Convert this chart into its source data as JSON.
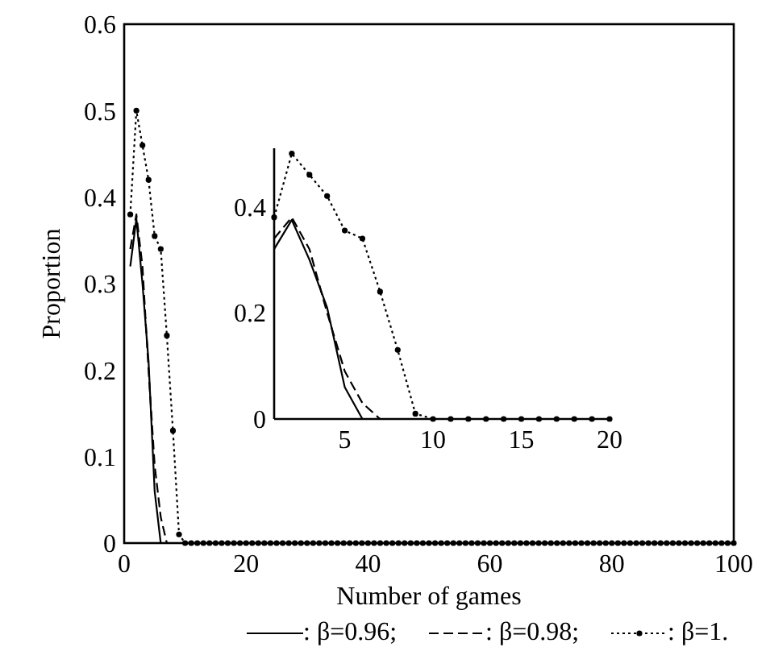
{
  "chart_data": [
    {
      "type": "line",
      "xlabel": "Number of games",
      "ylabel": "Proportion",
      "xlim": [
        0,
        100
      ],
      "xticks": [
        0,
        20,
        40,
        60,
        80,
        100
      ],
      "ylim": [
        0,
        0.6
      ],
      "yticks": [
        0,
        0.1,
        0.2,
        0.3,
        0.4,
        0.5,
        0.6
      ],
      "legend": "bottom",
      "x": [
        1,
        2,
        3,
        4,
        5,
        6,
        7,
        8,
        9,
        10,
        11,
        12,
        13,
        14,
        15,
        16,
        17,
        18,
        19,
        20,
        21,
        22,
        23,
        24,
        25,
        26,
        27,
        28,
        29,
        30,
        31,
        32,
        33,
        34,
        35,
        36,
        37,
        38,
        39,
        40,
        41,
        42,
        43,
        44,
        45,
        46,
        47,
        48,
        49,
        50,
        51,
        52,
        53,
        54,
        55,
        56,
        57,
        58,
        59,
        60,
        61,
        62,
        63,
        64,
        65,
        66,
        67,
        68,
        69,
        70,
        71,
        72,
        73,
        74,
        75,
        76,
        77,
        78,
        79,
        80,
        81,
        82,
        83,
        84,
        85,
        86,
        87,
        88,
        89,
        90,
        91,
        92,
        93,
        94,
        95,
        96,
        97,
        98,
        99,
        100
      ],
      "series": [
        {
          "name": ": β=0.96;",
          "color": "#000000",
          "line_style": "solid",
          "marker": "none",
          "x": [
            1,
            2,
            3,
            4,
            5,
            6
          ],
          "values": [
            0.32,
            0.375,
            0.3,
            0.21,
            0.06,
            0
          ]
        },
        {
          "name": ": β=0.98;",
          "color": "#000000",
          "line_style": "dashed",
          "marker": "none",
          "x": [
            1,
            2,
            3,
            4,
            5,
            6,
            7
          ],
          "values": [
            0.34,
            0.38,
            0.32,
            0.2,
            0.09,
            0.03,
            0
          ]
        },
        {
          "name": ": β=1.",
          "color": "#000000",
          "line_style": "dotted",
          "marker": "circle",
          "values": [
            0.38,
            0.5,
            0.46,
            0.42,
            0.355,
            0.34,
            0.24,
            0.13,
            0.01,
            0,
            0,
            0,
            0,
            0,
            0,
            0,
            0,
            0,
            0,
            0,
            0,
            0,
            0,
            0,
            0,
            0,
            0,
            0,
            0,
            0,
            0,
            0,
            0,
            0,
            0,
            0,
            0,
            0,
            0,
            0,
            0,
            0,
            0,
            0,
            0,
            0,
            0,
            0,
            0,
            0,
            0,
            0,
            0,
            0,
            0,
            0,
            0,
            0,
            0,
            0,
            0,
            0,
            0,
            0,
            0,
            0,
            0,
            0,
            0,
            0,
            0,
            0,
            0,
            0,
            0,
            0,
            0,
            0,
            0,
            0,
            0,
            0,
            0,
            0,
            0,
            0,
            0,
            0,
            0,
            0,
            0,
            0,
            0,
            0,
            0,
            0,
            0,
            0,
            0,
            0
          ]
        }
      ]
    },
    {
      "type": "line",
      "xlim": [
        1,
        20
      ],
      "xticks": [
        5,
        10,
        15,
        20
      ],
      "ylim": [
        0,
        0.51
      ],
      "yticks": [
        0,
        0.2,
        0.4
      ],
      "x": [
        1,
        2,
        3,
        4,
        5,
        6,
        7,
        8,
        9,
        10,
        11,
        12,
        13,
        14,
        15,
        16,
        17,
        18,
        19,
        20
      ],
      "series": [
        {
          "color": "#000000",
          "line_style": "solid",
          "marker": "none",
          "x": [
            1,
            2,
            3,
            4,
            5,
            6
          ],
          "values": [
            0.32,
            0.375,
            0.3,
            0.21,
            0.06,
            0
          ]
        },
        {
          "color": "#000000",
          "line_style": "dashed",
          "marker": "none",
          "x": [
            1,
            2,
            3,
            4,
            5,
            6,
            7
          ],
          "values": [
            0.34,
            0.38,
            0.32,
            0.2,
            0.09,
            0.03,
            0
          ]
        },
        {
          "color": "#000000",
          "line_style": "dotted",
          "marker": "circle",
          "values": [
            0.38,
            0.5,
            0.46,
            0.42,
            0.355,
            0.34,
            0.24,
            0.13,
            0.01,
            0,
            0,
            0,
            0,
            0,
            0,
            0,
            0,
            0,
            0,
            0
          ]
        }
      ]
    }
  ]
}
